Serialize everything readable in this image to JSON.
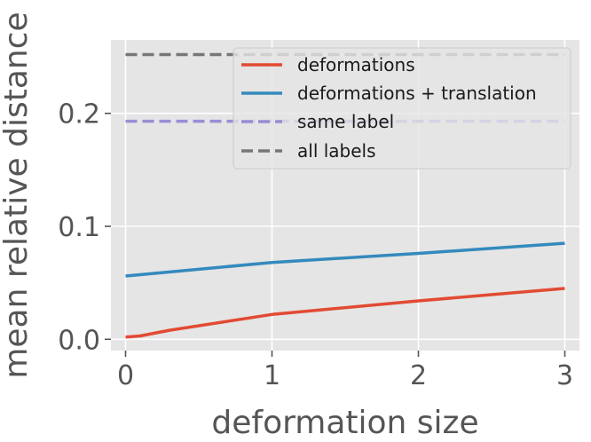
{
  "chart_data": {
    "type": "line",
    "title": "",
    "xlabel": "deformation size",
    "ylabel": "mean relative distance",
    "xlim": [
      -0.1,
      3.1
    ],
    "ylim": [
      -0.01,
      0.265
    ],
    "xticks": [
      0,
      1,
      2,
      3
    ],
    "xtick_labels": [
      "0",
      "1",
      "2",
      "3"
    ],
    "yticks": [
      0.0,
      0.1,
      0.2
    ],
    "ytick_labels": [
      "0.0",
      "0.1",
      "0.2"
    ],
    "grid": true,
    "legend_position": "top-right",
    "series": [
      {
        "name": "deformations",
        "color": "#e24a33",
        "style": "solid",
        "x": [
          0,
          0.1,
          0.3,
          1,
          2,
          3
        ],
        "y": [
          0.002,
          0.003,
          0.008,
          0.022,
          0.034,
          0.045
        ]
      },
      {
        "name": "deformations + translation",
        "color": "#348abd",
        "style": "solid",
        "x": [
          0,
          1,
          2,
          3
        ],
        "y": [
          0.056,
          0.068,
          0.076,
          0.085
        ]
      },
      {
        "name": "same label",
        "color": "#988ed5",
        "style": "dashed",
        "x": [
          0,
          3
        ],
        "y": [
          0.193,
          0.193
        ]
      },
      {
        "name": "all labels",
        "color": "#777777",
        "style": "dashed",
        "x": [
          0,
          3
        ],
        "y": [
          0.252,
          0.252
        ]
      }
    ]
  }
}
